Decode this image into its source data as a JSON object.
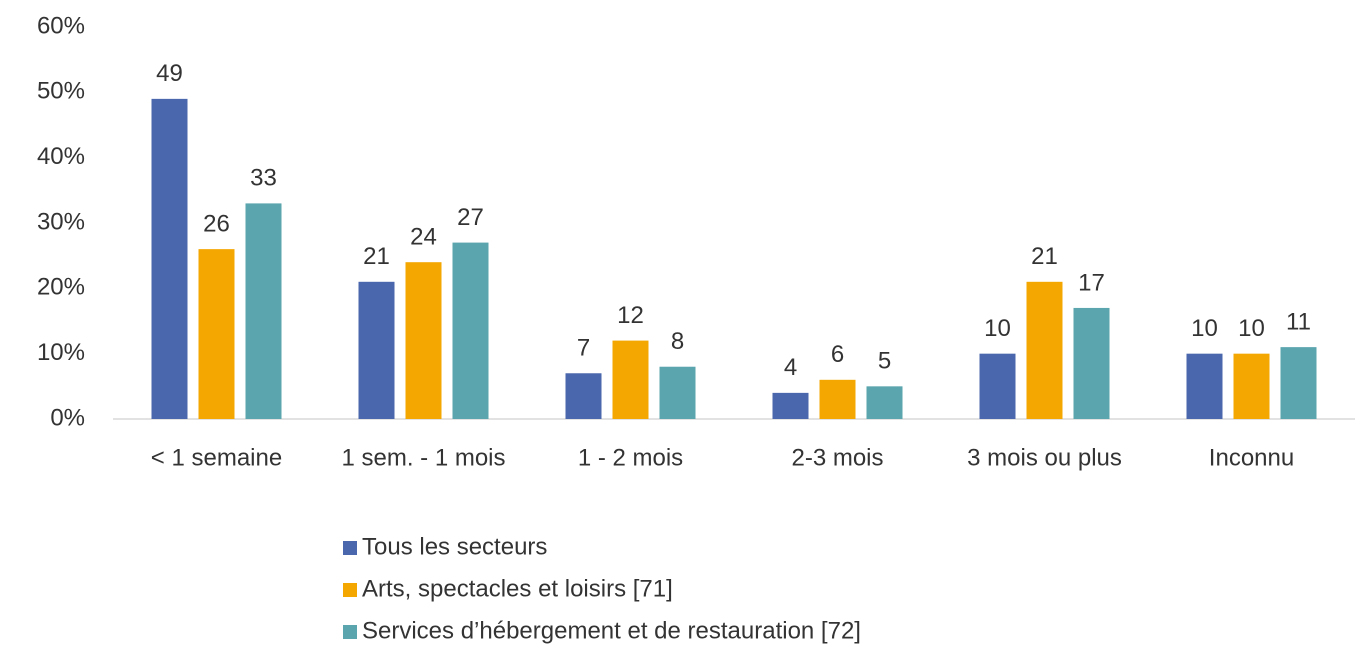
{
  "chart_data": {
    "type": "bar",
    "categories": [
      "< 1 semaine",
      "1 sem. - 1 mois",
      "1 - 2 mois",
      "2-3 mois",
      "3 mois ou plus",
      "Inconnu"
    ],
    "series": [
      {
        "name": "Tous les secteurs",
        "color": "#4a66ac",
        "values": [
          49,
          21,
          7,
          4,
          10,
          10
        ]
      },
      {
        "name": "Arts, spectacles et loisirs  [71]",
        "color": "#f4a700",
        "values": [
          26,
          24,
          12,
          6,
          21,
          10
        ]
      },
      {
        "name": "Services d’hébergement et de restauration  [72]",
        "color": "#5aa5ae",
        "values": [
          33,
          27,
          8,
          5,
          17,
          11
        ]
      }
    ],
    "ylim": [
      0,
      60
    ],
    "yticks": [
      {
        "value": 0,
        "label": "0%"
      },
      {
        "value": 10,
        "label": "10%"
      },
      {
        "value": 20,
        "label": "20%"
      },
      {
        "value": 30,
        "label": "30%"
      },
      {
        "value": 40,
        "label": "40%"
      },
      {
        "value": 50,
        "label": "50%"
      },
      {
        "value": 60,
        "label": "60%"
      }
    ],
    "grid": false,
    "legend": "bottom"
  }
}
